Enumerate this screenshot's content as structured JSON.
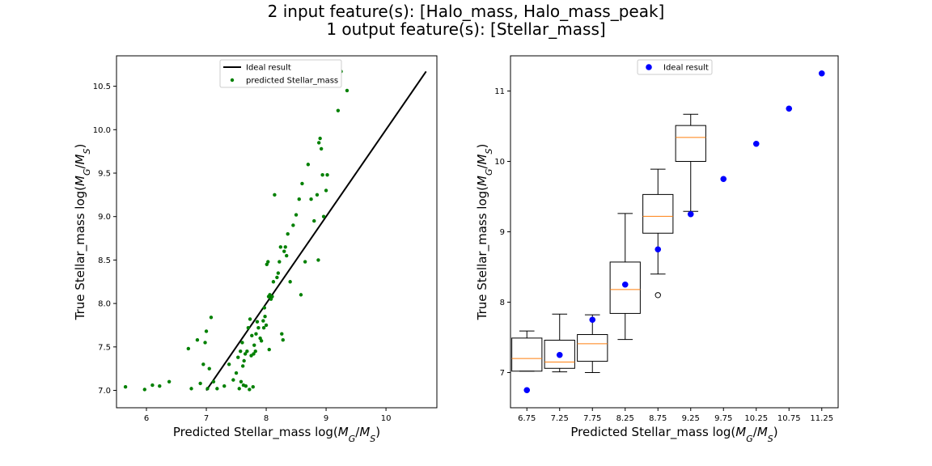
{
  "figure": {
    "title_line1": "2 input feature(s): [Halo_mass, Halo_mass_peak]",
    "title_line2": "1 output feature(s): [Stellar_mass]"
  },
  "chart_data": [
    {
      "type": "scatter",
      "xlabel": "Predicted Stellar_mass log(M_G/M_S)",
      "ylabel": "True Stellar_mass log(M_G/M_S)",
      "xlim": [
        5.5,
        10.85
      ],
      "ylim": [
        6.8,
        10.85
      ],
      "xticks": [
        6,
        7,
        8,
        9,
        10
      ],
      "yticks": [
        7.0,
        7.5,
        8.0,
        8.5,
        9.0,
        9.5,
        10.0,
        10.5
      ],
      "xtick_labels": [
        "6",
        "7",
        "8",
        "9",
        "10"
      ],
      "ytick_labels": [
        "7.0",
        "7.5",
        "8.0",
        "8.5",
        "9.0",
        "9.5",
        "10.0",
        "10.5"
      ],
      "legend_position": "top-center",
      "legend": [
        "Ideal result",
        "predicted Stellar_mass"
      ],
      "ideal_line": {
        "name": "Ideal result",
        "color": "#000000",
        "x": [
          7.0,
          10.67
        ],
        "y": [
          7.0,
          10.67
        ]
      },
      "series": [
        {
          "name": "predicted Stellar_mass",
          "color": "#008000",
          "points": [
            [
              5.65,
              7.04
            ],
            [
              5.97,
              7.01
            ],
            [
              6.1,
              7.06
            ],
            [
              6.22,
              7.05
            ],
            [
              6.38,
              7.1
            ],
            [
              6.7,
              7.48
            ],
            [
              6.75,
              7.02
            ],
            [
              6.85,
              7.58
            ],
            [
              6.9,
              7.08
            ],
            [
              6.95,
              7.3
            ],
            [
              6.98,
              7.55
            ],
            [
              7.0,
              7.68
            ],
            [
              7.02,
              7.02
            ],
            [
              7.05,
              7.25
            ],
            [
              7.08,
              7.84
            ],
            [
              7.12,
              7.1
            ],
            [
              7.18,
              7.02
            ],
            [
              7.3,
              7.05
            ],
            [
              7.38,
              7.3
            ],
            [
              7.45,
              7.12
            ],
            [
              7.5,
              7.2
            ],
            [
              7.53,
              7.38
            ],
            [
              7.55,
              7.02
            ],
            [
              7.57,
              7.45
            ],
            [
              7.58,
              7.1
            ],
            [
              7.6,
              7.55
            ],
            [
              7.61,
              7.28
            ],
            [
              7.62,
              7.06
            ],
            [
              7.63,
              7.34
            ],
            [
              7.65,
              7.42
            ],
            [
              7.66,
              7.05
            ],
            [
              7.68,
              7.45
            ],
            [
              7.7,
              7.72
            ],
            [
              7.72,
              7.01
            ],
            [
              7.73,
              7.82
            ],
            [
              7.75,
              7.4
            ],
            [
              7.76,
              7.63
            ],
            [
              7.78,
              7.04
            ],
            [
              7.79,
              7.42
            ],
            [
              7.8,
              7.52
            ],
            [
              7.82,
              7.45
            ],
            [
              7.83,
              7.65
            ],
            [
              7.85,
              7.79
            ],
            [
              7.87,
              7.72
            ],
            [
              7.9,
              7.6
            ],
            [
              7.92,
              7.57
            ],
            [
              7.95,
              7.8
            ],
            [
              7.96,
              7.72
            ],
            [
              7.97,
              7.95
            ],
            [
              7.98,
              7.85
            ],
            [
              8.0,
              7.75
            ],
            [
              8.01,
              8.45
            ],
            [
              8.03,
              8.48
            ],
            [
              8.04,
              8.08
            ],
            [
              8.05,
              7.47
            ],
            [
              8.06,
              8.1
            ],
            [
              8.08,
              8.05
            ],
            [
              8.1,
              8.08
            ],
            [
              8.12,
              8.25
            ],
            [
              8.14,
              9.25
            ],
            [
              8.18,
              8.3
            ],
            [
              8.2,
              8.35
            ],
            [
              8.22,
              8.48
            ],
            [
              8.24,
              8.65
            ],
            [
              8.26,
              7.65
            ],
            [
              8.28,
              7.58
            ],
            [
              8.3,
              8.6
            ],
            [
              8.32,
              8.65
            ],
            [
              8.34,
              8.55
            ],
            [
              8.36,
              8.8
            ],
            [
              8.4,
              8.25
            ],
            [
              8.45,
              8.9
            ],
            [
              8.5,
              9.02
            ],
            [
              8.55,
              9.2
            ],
            [
              8.58,
              8.1
            ],
            [
              8.6,
              9.38
            ],
            [
              8.65,
              8.48
            ],
            [
              8.7,
              9.6
            ],
            [
              8.75,
              9.2
            ],
            [
              8.8,
              8.95
            ],
            [
              8.85,
              9.25
            ],
            [
              8.87,
              8.5
            ],
            [
              8.88,
              9.85
            ],
            [
              8.9,
              9.9
            ],
            [
              8.92,
              9.78
            ],
            [
              8.94,
              9.48
            ],
            [
              8.96,
              9.0
            ],
            [
              9.0,
              9.3
            ],
            [
              9.02,
              9.48
            ],
            [
              9.2,
              10.22
            ],
            [
              9.25,
              10.67
            ],
            [
              9.35,
              10.45
            ]
          ]
        }
      ]
    },
    {
      "type": "box",
      "xlabel": "Predicted Stellar_mass log(M_G/M_S)",
      "ylabel": "True Stellar_mass log(M_G/M_S)",
      "categories": [
        "6.75",
        "7.25",
        "7.75",
        "8.25",
        "8.75",
        "9.25",
        "9.75",
        "10.25",
        "10.75",
        "11.25"
      ],
      "ylim": [
        6.5,
        11.5
      ],
      "yticks": [
        7,
        8,
        9,
        10,
        11
      ],
      "ytick_labels": [
        "7",
        "8",
        "9",
        "10",
        "11"
      ],
      "legend_position": "top-center",
      "legend": [
        "Ideal result"
      ],
      "boxes": [
        {
          "category": "6.75",
          "whisker_low": 7.02,
          "q1": 7.02,
          "median": 7.2,
          "q3": 7.49,
          "whisker_high": 7.59,
          "outliers": []
        },
        {
          "category": "7.25",
          "whisker_low": 7.01,
          "q1": 7.06,
          "median": 7.15,
          "q3": 7.46,
          "whisker_high": 7.83,
          "outliers": []
        },
        {
          "category": "7.75",
          "whisker_low": 7.0,
          "q1": 7.16,
          "median": 7.41,
          "q3": 7.54,
          "whisker_high": 7.82,
          "outliers": []
        },
        {
          "category": "8.25",
          "whisker_low": 7.47,
          "q1": 7.84,
          "median": 8.18,
          "q3": 8.57,
          "whisker_high": 9.26,
          "outliers": []
        },
        {
          "category": "8.75",
          "whisker_low": 8.4,
          "q1": 8.98,
          "median": 9.22,
          "q3": 9.53,
          "whisker_high": 9.89,
          "outliers": [
            8.1
          ]
        },
        {
          "category": "9.25",
          "whisker_low": 9.29,
          "q1": 10.0,
          "median": 10.34,
          "q3": 10.51,
          "whisker_high": 10.67,
          "outliers": []
        }
      ],
      "ideal_points": {
        "name": "Ideal result",
        "color": "#0000ff",
        "values": [
          6.75,
          7.25,
          7.75,
          8.25,
          8.75,
          9.25,
          9.75,
          10.25,
          10.75,
          11.25
        ]
      },
      "median_color": "#ff7f0e"
    }
  ]
}
